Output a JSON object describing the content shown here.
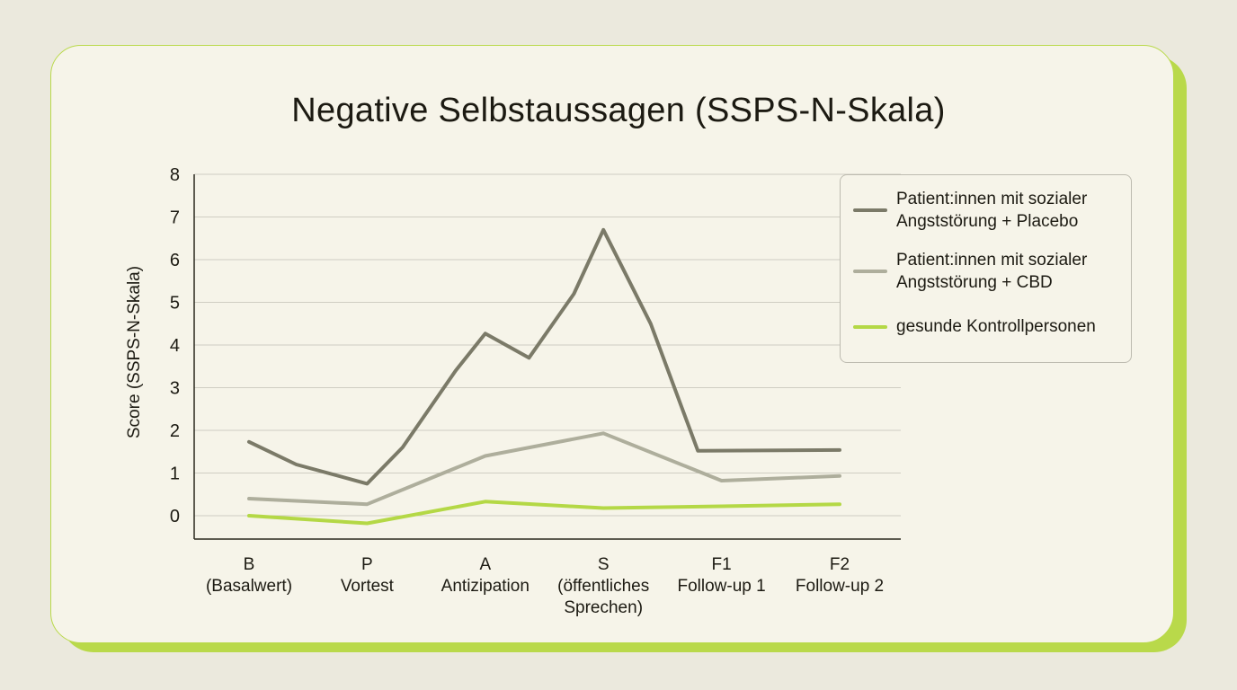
{
  "chart_data": {
    "type": "line",
    "title": "Negative Selbstaussagen (SSPS-N-Skala)",
    "ylabel": "Score (SSPS-N-Skala)",
    "xlabel": "",
    "ylim": [
      0,
      8
    ],
    "yticks": [
      "0",
      "1",
      "2",
      "3",
      "4",
      "5",
      "6",
      "7",
      "8"
    ],
    "grid": true,
    "legend_position": "top-right",
    "categories": [
      [
        "B",
        "(Basalwert)"
      ],
      [
        "P",
        "Vortest"
      ],
      [
        "A",
        "Antizipation"
      ],
      [
        "S",
        "(öffentliches",
        "Sprechen)"
      ],
      [
        "F1",
        "Follow-up 1"
      ],
      [
        "F2",
        "Follow-up 2"
      ]
    ],
    "series": [
      {
        "name": "Patient:innen mit sozialer Angststörung + Placebo",
        "color": "#7b7a68",
        "x": [
          0,
          0.4,
          1.0,
          1.3,
          1.75,
          2.0,
          2.37,
          2.75,
          3.0,
          3.4,
          3.8,
          5.0
        ],
        "values": [
          1.73,
          1.2,
          0.75,
          1.6,
          3.4,
          4.27,
          3.7,
          5.2,
          6.7,
          4.5,
          1.52,
          1.54
        ]
      },
      {
        "name": "Patient:innen mit sozialer Angststörung + CBD",
        "color": "#aeae9c",
        "x": [
          0,
          1.0,
          2.0,
          3.0,
          4.0,
          5.0
        ],
        "values": [
          0.4,
          0.27,
          1.4,
          1.93,
          0.82,
          0.93
        ]
      },
      {
        "name": "gesunde Kontrollpersonen",
        "color": "#b4d846",
        "x": [
          0,
          1.0,
          2.0,
          3.0,
          4.0,
          5.0
        ],
        "values": [
          0.0,
          -0.18,
          0.33,
          0.18,
          0.22,
          0.27
        ]
      }
    ]
  }
}
